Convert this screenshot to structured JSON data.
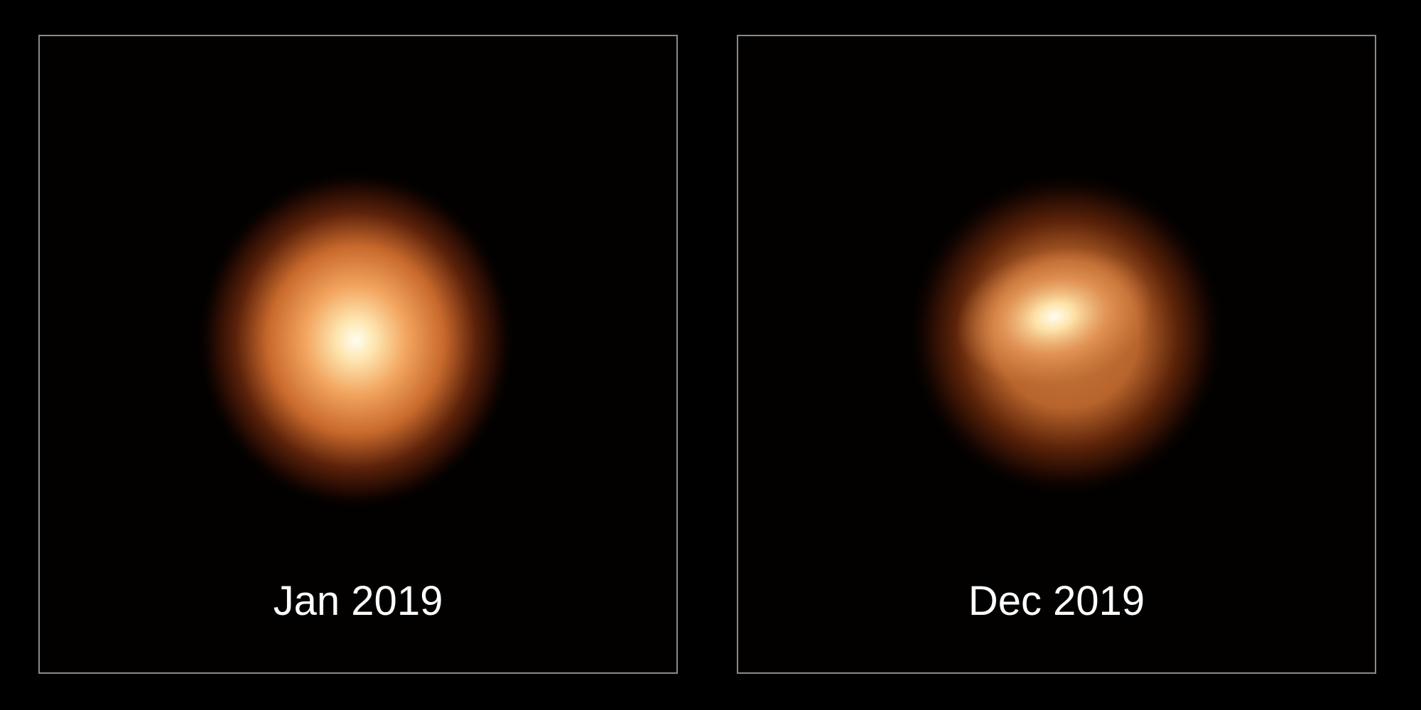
{
  "panels": [
    {
      "label": "Jan 2019"
    },
    {
      "label": "Dec 2019"
    }
  ],
  "colors": {
    "background": "#000000",
    "frame": "#8a8a8a",
    "star_core": "#fffbe8",
    "star_mid": "#e8904a",
    "star_edge": "#5a2008"
  }
}
